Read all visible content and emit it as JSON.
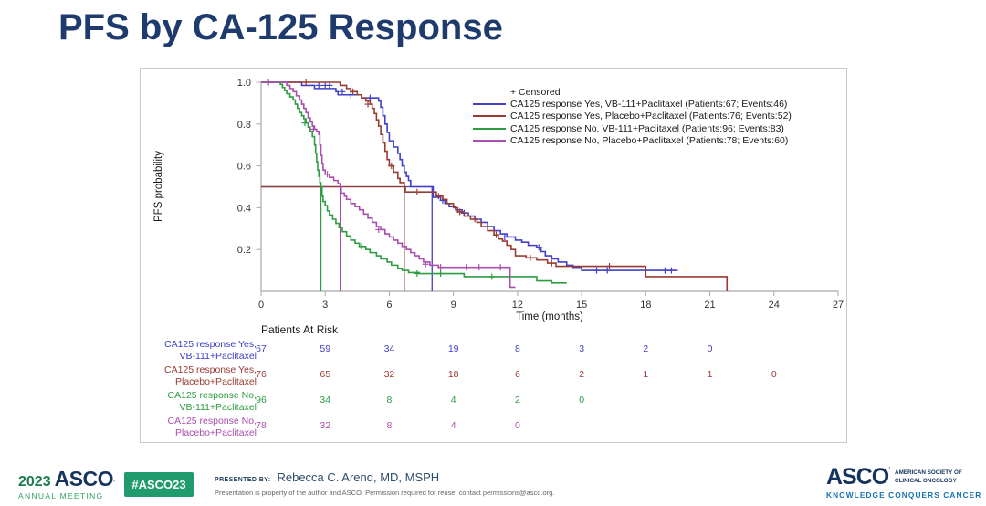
{
  "slide": {
    "title": "PFS by CA-125 Response"
  },
  "colors": {
    "title_navy": "#1f3b6d",
    "series_blue": "#4040c8",
    "series_red": "#9a3b33",
    "series_green": "#2f9c44",
    "series_magenta": "#aa4fae",
    "badge_green": "#1f9b6e",
    "asco_navy": "#16355c",
    "tagline_blue": "#1573b5",
    "axis_gray": "#a9a9a9"
  },
  "chart_data": {
    "type": "line",
    "subtype": "kaplan-meier-step",
    "xlabel": "Time (months)",
    "ylabel": "PFS probability",
    "xlim": [
      0,
      27
    ],
    "ylim": [
      0,
      1.0
    ],
    "xticks": [
      0,
      3,
      6,
      9,
      12,
      15,
      18,
      21,
      24,
      27
    ],
    "yticks": [
      0.2,
      0.4,
      0.6,
      0.8,
      1.0
    ],
    "grid": false,
    "legend_position": "top-right-inside",
    "censored_label": "+ Censored",
    "median_reference_level": 0.5,
    "series": [
      {
        "name": "CA125 response Yes, VB-111+Paclitaxel (Patients:67; Events:46)",
        "color": "#4040c8",
        "median": 8.0,
        "steps": [
          [
            0,
            1.0
          ],
          [
            1.8,
            1.0
          ],
          [
            1.9,
            0.985
          ],
          [
            2.5,
            0.97
          ],
          [
            3.4,
            0.97
          ],
          [
            3.5,
            0.955
          ],
          [
            3.6,
            0.94
          ],
          [
            4.6,
            0.94
          ],
          [
            4.7,
            0.925
          ],
          [
            5.4,
            0.925
          ],
          [
            5.5,
            0.91
          ],
          [
            5.6,
            0.88
          ],
          [
            5.7,
            0.84
          ],
          [
            5.8,
            0.8
          ],
          [
            5.9,
            0.76
          ],
          [
            6.0,
            0.72
          ],
          [
            6.2,
            0.69
          ],
          [
            6.4,
            0.66
          ],
          [
            6.5,
            0.63
          ],
          [
            6.6,
            0.6
          ],
          [
            6.7,
            0.57
          ],
          [
            6.8,
            0.55
          ],
          [
            6.9,
            0.53
          ],
          [
            7.0,
            0.5
          ],
          [
            8.0,
            0.5
          ],
          [
            8.05,
            0.45
          ],
          [
            8.4,
            0.435
          ],
          [
            8.6,
            0.42
          ],
          [
            8.8,
            0.405
          ],
          [
            9.1,
            0.39
          ],
          [
            9.4,
            0.375
          ],
          [
            9.7,
            0.36
          ],
          [
            10.0,
            0.345
          ],
          [
            10.3,
            0.33
          ],
          [
            10.6,
            0.31
          ],
          [
            10.9,
            0.29
          ],
          [
            11.2,
            0.275
          ],
          [
            11.5,
            0.26
          ],
          [
            11.9,
            0.245
          ],
          [
            12.2,
            0.235
          ],
          [
            12.5,
            0.22
          ],
          [
            12.9,
            0.21
          ],
          [
            13.1,
            0.19
          ],
          [
            13.3,
            0.17
          ],
          [
            13.6,
            0.155
          ],
          [
            13.9,
            0.14
          ],
          [
            14.3,
            0.125
          ],
          [
            14.6,
            0.115
          ],
          [
            15.0,
            0.1
          ],
          [
            19.5,
            0.1
          ]
        ],
        "censors": [
          [
            2.7,
            0.985
          ],
          [
            3.0,
            0.985
          ],
          [
            3.2,
            0.985
          ],
          [
            3.8,
            0.955
          ],
          [
            4.2,
            0.94
          ],
          [
            5.1,
            0.925
          ],
          [
            8.5,
            0.435
          ],
          [
            9.5,
            0.375
          ],
          [
            11.4,
            0.26
          ],
          [
            13.0,
            0.21
          ],
          [
            15.7,
            0.1
          ],
          [
            16.2,
            0.1
          ],
          [
            18.9,
            0.1
          ],
          [
            19.2,
            0.1
          ]
        ]
      },
      {
        "name": "CA125 response Yes, Placebo+Paclitaxel (Patients:76; Events:52)",
        "color": "#9a3b33",
        "median": 6.7,
        "steps": [
          [
            0,
            1.0
          ],
          [
            3.6,
            1.0
          ],
          [
            3.7,
            0.985
          ],
          [
            4.0,
            0.97
          ],
          [
            4.2,
            0.955
          ],
          [
            4.5,
            0.94
          ],
          [
            4.7,
            0.925
          ],
          [
            4.9,
            0.91
          ],
          [
            5.1,
            0.895
          ],
          [
            5.2,
            0.875
          ],
          [
            5.3,
            0.85
          ],
          [
            5.4,
            0.82
          ],
          [
            5.5,
            0.79
          ],
          [
            5.6,
            0.75
          ],
          [
            5.7,
            0.71
          ],
          [
            5.8,
            0.67
          ],
          [
            5.9,
            0.63
          ],
          [
            6.0,
            0.6
          ],
          [
            6.2,
            0.57
          ],
          [
            6.4,
            0.54
          ],
          [
            6.5,
            0.52
          ],
          [
            6.7,
            0.5
          ],
          [
            6.75,
            0.475
          ],
          [
            8.1,
            0.475
          ],
          [
            8.2,
            0.455
          ],
          [
            8.5,
            0.44
          ],
          [
            8.7,
            0.42
          ],
          [
            9.0,
            0.4
          ],
          [
            9.2,
            0.38
          ],
          [
            9.5,
            0.36
          ],
          [
            9.8,
            0.345
          ],
          [
            10.1,
            0.33
          ],
          [
            10.3,
            0.31
          ],
          [
            10.6,
            0.29
          ],
          [
            10.9,
            0.27
          ],
          [
            11.1,
            0.25
          ],
          [
            11.3,
            0.24
          ],
          [
            11.5,
            0.22
          ],
          [
            11.7,
            0.2
          ],
          [
            11.9,
            0.17
          ],
          [
            12.4,
            0.16
          ],
          [
            12.9,
            0.15
          ],
          [
            13.4,
            0.135
          ],
          [
            13.8,
            0.12
          ],
          [
            17.9,
            0.12
          ],
          [
            18.0,
            0.07
          ],
          [
            21.7,
            0.07
          ],
          [
            21.8,
            0.0
          ]
        ],
        "censors": [
          [
            2.1,
            1.0
          ],
          [
            4.3,
            0.955
          ],
          [
            5.0,
            0.895
          ],
          [
            6.1,
            0.6
          ],
          [
            7.3,
            0.475
          ],
          [
            8.3,
            0.455
          ],
          [
            9.3,
            0.38
          ],
          [
            10.0,
            0.345
          ],
          [
            11.0,
            0.27
          ],
          [
            12.6,
            0.16
          ],
          [
            13.6,
            0.135
          ],
          [
            16.3,
            0.12
          ]
        ]
      },
      {
        "name": "CA125 response No, VB-111+Paclitaxel (Patients:96; Events:83)",
        "color": "#2f9c44",
        "median": 2.8,
        "steps": [
          [
            0,
            1.0
          ],
          [
            0.8,
            1.0
          ],
          [
            0.9,
            0.99
          ],
          [
            1.0,
            0.975
          ],
          [
            1.1,
            0.96
          ],
          [
            1.2,
            0.945
          ],
          [
            1.35,
            0.93
          ],
          [
            1.5,
            0.915
          ],
          [
            1.6,
            0.895
          ],
          [
            1.7,
            0.875
          ],
          [
            1.8,
            0.855
          ],
          [
            1.9,
            0.84
          ],
          [
            2.0,
            0.825
          ],
          [
            2.1,
            0.805
          ],
          [
            2.2,
            0.785
          ],
          [
            2.3,
            0.765
          ],
          [
            2.4,
            0.74
          ],
          [
            2.5,
            0.7
          ],
          [
            2.55,
            0.66
          ],
          [
            2.6,
            0.62
          ],
          [
            2.65,
            0.58
          ],
          [
            2.7,
            0.55
          ],
          [
            2.75,
            0.52
          ],
          [
            2.8,
            0.5
          ],
          [
            2.85,
            0.455
          ],
          [
            2.9,
            0.43
          ],
          [
            3.0,
            0.41
          ],
          [
            3.1,
            0.385
          ],
          [
            3.2,
            0.365
          ],
          [
            3.35,
            0.345
          ],
          [
            3.5,
            0.325
          ],
          [
            3.65,
            0.305
          ],
          [
            3.8,
            0.285
          ],
          [
            4.0,
            0.265
          ],
          [
            4.2,
            0.245
          ],
          [
            4.4,
            0.23
          ],
          [
            4.6,
            0.215
          ],
          [
            4.9,
            0.2
          ],
          [
            5.1,
            0.185
          ],
          [
            5.4,
            0.17
          ],
          [
            5.6,
            0.155
          ],
          [
            5.9,
            0.14
          ],
          [
            6.1,
            0.125
          ],
          [
            6.4,
            0.11
          ],
          [
            6.6,
            0.1
          ],
          [
            6.9,
            0.09
          ],
          [
            7.4,
            0.085
          ],
          [
            9.4,
            0.085
          ],
          [
            9.5,
            0.07
          ],
          [
            12.8,
            0.07
          ],
          [
            12.9,
            0.05
          ],
          [
            13.5,
            0.05
          ],
          [
            13.6,
            0.04
          ],
          [
            14.3,
            0.04
          ]
        ],
        "censors": [
          [
            2.05,
            0.805
          ],
          [
            4.7,
            0.215
          ],
          [
            7.3,
            0.085
          ],
          [
            8.4,
            0.085
          ],
          [
            10.8,
            0.07
          ]
        ]
      },
      {
        "name": "CA125 response No, Placebo+Paclitaxel (Patients:78; Events:60)",
        "color": "#aa4fae",
        "median": 3.7,
        "steps": [
          [
            0,
            1.0
          ],
          [
            1.1,
            1.0
          ],
          [
            1.2,
            0.985
          ],
          [
            1.35,
            0.97
          ],
          [
            1.5,
            0.955
          ],
          [
            1.65,
            0.935
          ],
          [
            1.8,
            0.915
          ],
          [
            1.9,
            0.895
          ],
          [
            2.0,
            0.875
          ],
          [
            2.1,
            0.855
          ],
          [
            2.2,
            0.83
          ],
          [
            2.3,
            0.81
          ],
          [
            2.4,
            0.79
          ],
          [
            2.5,
            0.775
          ],
          [
            2.6,
            0.765
          ],
          [
            2.7,
            0.75
          ],
          [
            2.75,
            0.7
          ],
          [
            2.8,
            0.65
          ],
          [
            2.85,
            0.61
          ],
          [
            2.9,
            0.58
          ],
          [
            3.0,
            0.56
          ],
          [
            3.2,
            0.545
          ],
          [
            3.4,
            0.53
          ],
          [
            3.6,
            0.515
          ],
          [
            3.7,
            0.5
          ],
          [
            3.75,
            0.47
          ],
          [
            3.9,
            0.455
          ],
          [
            4.0,
            0.44
          ],
          [
            4.2,
            0.42
          ],
          [
            4.4,
            0.405
          ],
          [
            4.6,
            0.39
          ],
          [
            4.8,
            0.37
          ],
          [
            5.0,
            0.35
          ],
          [
            5.2,
            0.33
          ],
          [
            5.4,
            0.31
          ],
          [
            5.6,
            0.295
          ],
          [
            5.8,
            0.275
          ],
          [
            6.0,
            0.26
          ],
          [
            6.2,
            0.245
          ],
          [
            6.4,
            0.23
          ],
          [
            6.6,
            0.215
          ],
          [
            6.8,
            0.2
          ],
          [
            7.0,
            0.185
          ],
          [
            7.2,
            0.17
          ],
          [
            7.4,
            0.155
          ],
          [
            7.6,
            0.14
          ],
          [
            7.9,
            0.125
          ],
          [
            8.3,
            0.115
          ],
          [
            11.6,
            0.115
          ],
          [
            11.65,
            0.02
          ],
          [
            11.9,
            0.02
          ]
        ],
        "censors": [
          [
            0.35,
            1.0
          ],
          [
            2.45,
            0.775
          ],
          [
            3.1,
            0.56
          ],
          [
            5.5,
            0.295
          ],
          [
            7.7,
            0.13
          ],
          [
            8.4,
            0.115
          ],
          [
            9.6,
            0.115
          ],
          [
            10.2,
            0.115
          ],
          [
            11.2,
            0.115
          ]
        ]
      }
    ]
  },
  "risk_table": {
    "title": "Patients At Risk",
    "times": [
      0,
      3,
      6,
      9,
      12,
      15,
      18,
      21,
      24
    ],
    "rows": [
      {
        "label_line1": "CA125 response Yes,",
        "label_line2": "VB-111+Paclitaxel",
        "color": "#4040c8",
        "counts": [
          67,
          59,
          34,
          19,
          8,
          3,
          2,
          0
        ]
      },
      {
        "label_line1": "CA125 response Yes,",
        "label_line2": "Placebo+Paclitaxel",
        "color": "#9a3b33",
        "counts": [
          76,
          65,
          32,
          18,
          6,
          2,
          1,
          1,
          0
        ]
      },
      {
        "label_line1": "CA125 response No,",
        "label_line2": "VB-111+Paclitaxel",
        "color": "#2f9c44",
        "counts": [
          96,
          34,
          8,
          4,
          2,
          0
        ]
      },
      {
        "label_line1": "CA125 response No,",
        "label_line2": "Placebo+Paclitaxel",
        "color": "#aa4fae",
        "counts": [
          78,
          32,
          8,
          4,
          0
        ]
      }
    ]
  },
  "footer": {
    "year": "2023",
    "logo_main": "ASCO",
    "logo_mark": "’",
    "logo_sub": "ANNUAL MEETING",
    "hashtag": "#ASCO23",
    "presented_by_label": "PRESENTED BY:",
    "presenter": "Rebecca C. Arend, MD, MSPH",
    "disclaimer": "Presentation is property of the author and ASCO. Permission required for reuse; contact permissions@asco.org.",
    "right_logo": "ASCO",
    "right_logo_mark": "’",
    "right_sub1": "AMERICAN SOCIETY OF",
    "right_sub2": "CLINICAL ONCOLOGY",
    "tagline": "KNOWLEDGE CONQUERS CANCER"
  }
}
